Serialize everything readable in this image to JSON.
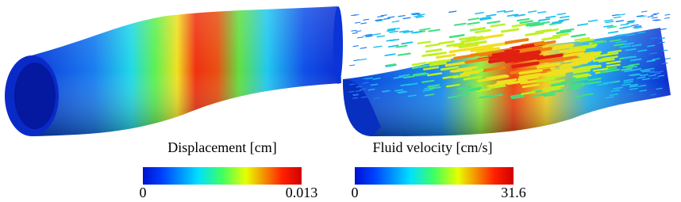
{
  "colorbars": [
    {
      "label": "Displacement [cm]",
      "ticks": [
        0,
        0.013
      ]
    },
    {
      "label": "Fluid velocity [cm/s]",
      "ticks": [
        0,
        31.6
      ]
    }
  ]
}
